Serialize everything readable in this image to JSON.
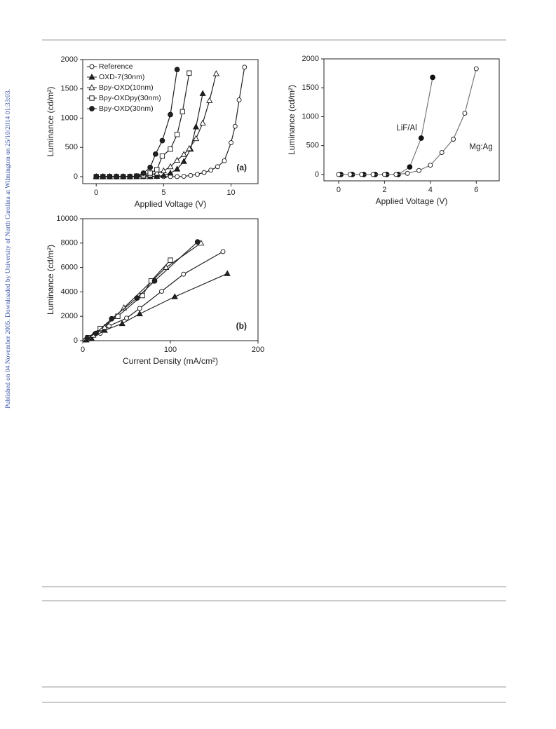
{
  "side_note": "Published on 04 November 2005. Downloaded by University of North Carolina at Wilmington on 25/10/2014 01:33:03.",
  "chart_data": [
    {
      "type": "line",
      "xlabel": "Applied Voltage (V)",
      "ylabel": "Luminance (cd/m²)",
      "annotations": [
        "(a)"
      ],
      "legend": "upper left",
      "xlim": [
        -1,
        12
      ],
      "xticks": [
        0,
        5,
        10
      ],
      "ylim": [
        -120,
        2000
      ],
      "yticks": [
        0,
        500,
        1000,
        1500,
        2000
      ],
      "series": [
        {
          "name": "Reference",
          "color": "#222222",
          "marker": "circle",
          "filled": false,
          "x": [
            0,
            0.5,
            1,
            1.5,
            2,
            2.5,
            3,
            3.5,
            4,
            4.5,
            5,
            5.5,
            6,
            6.5,
            7,
            7.5,
            8,
            8.5,
            9,
            9.5,
            10,
            10.3,
            10.6,
            11
          ],
          "values": [
            0,
            0,
            0,
            0,
            0,
            0,
            0,
            0,
            0,
            0,
            0,
            0,
            0,
            5,
            20,
            40,
            70,
            110,
            170,
            270,
            580,
            860,
            1310,
            1870
          ]
        },
        {
          "name": "OXD-7(30nm)",
          "color": "#222222",
          "marker": "triangle",
          "filled": true,
          "x": [
            0,
            0.5,
            1,
            1.5,
            2,
            2.5,
            3,
            3.5,
            4,
            4.5,
            5,
            5.5,
            6,
            6.5,
            7,
            7.4,
            7.9
          ],
          "values": [
            0,
            0,
            0,
            0,
            0,
            0,
            0,
            0,
            0,
            5,
            20,
            60,
            130,
            260,
            470,
            850,
            1420
          ]
        },
        {
          "name": "Bpy-OXD(10nm)",
          "color": "#222222",
          "marker": "triangle",
          "filled": false,
          "x": [
            0,
            0.5,
            1,
            1.5,
            2,
            2.5,
            3,
            3.5,
            4,
            4.5,
            5,
            5.5,
            6,
            6.5,
            6.9,
            7.4,
            7.9,
            8.4,
            8.9
          ],
          "values": [
            0,
            0,
            0,
            0,
            0,
            0,
            0,
            10,
            30,
            60,
            100,
            170,
            280,
            380,
            480,
            650,
            915,
            1300,
            1760
          ]
        },
        {
          "name": "Bpy-OXDpy(30nm)",
          "color": "#222222",
          "marker": "square",
          "filled": false,
          "x": [
            0,
            0.5,
            1,
            1.5,
            2,
            2.5,
            3,
            3.5,
            4,
            4.5,
            4.9,
            5.5,
            6,
            6.4,
            6.9
          ],
          "values": [
            0,
            0,
            0,
            0,
            0,
            0,
            10,
            30,
            60,
            120,
            350,
            470,
            720,
            1110,
            1770
          ]
        },
        {
          "name": "Bpy-OXD(30nm)",
          "color": "#222222",
          "marker": "circle",
          "filled": true,
          "x": [
            0,
            0.5,
            1,
            1.5,
            2,
            2.5,
            3,
            3.5,
            4,
            4.4,
            4.9,
            5.5,
            6
          ],
          "values": [
            0,
            0,
            0,
            0,
            0,
            0,
            10,
            60,
            157,
            385,
            615,
            1060,
            1830
          ]
        }
      ]
    },
    {
      "type": "line",
      "xlabel": "Current Density (mA/cm²)",
      "ylabel": "Luminance (cd/m²)",
      "annotations": [
        "(b)"
      ],
      "xlim": [
        0,
        200
      ],
      "xticks": [
        0,
        100,
        200
      ],
      "ylim": [
        0,
        10000
      ],
      "yticks": [
        0,
        2000,
        4000,
        6000,
        8000,
        10000
      ],
      "series": [
        {
          "name": "Reference",
          "color": "#222222",
          "marker": "circle",
          "filled": false,
          "x": [
            3,
            8,
            20,
            30,
            50,
            65,
            90,
            115,
            160
          ],
          "values": [
            50,
            200,
            600,
            1200,
            1850,
            2650,
            4050,
            5450,
            7300
          ]
        },
        {
          "name": "OXD-7(30nm)",
          "color": "#222222",
          "marker": "triangle",
          "filled": true,
          "x": [
            4,
            10,
            25,
            45,
            65,
            105,
            165
          ],
          "values": [
            60,
            200,
            850,
            1400,
            2200,
            3600,
            5500
          ]
        },
        {
          "name": "Bpy-OXD(10nm)",
          "color": "#222222",
          "marker": "triangle",
          "filled": false,
          "x": [
            5,
            12,
            25,
            47,
            95,
            135
          ],
          "values": [
            150,
            450,
            1100,
            2700,
            6000,
            8000
          ]
        },
        {
          "name": "Bpy-OXDpy(30nm)",
          "color": "#222222",
          "marker": "square",
          "filled": false,
          "x": [
            6,
            20,
            40,
            68,
            78,
            100
          ],
          "values": [
            250,
            1000,
            2000,
            3700,
            4900,
            6600
          ]
        },
        {
          "name": "Bpy-OXD(30nm)",
          "color": "#222222",
          "marker": "circle",
          "filled": true,
          "x": [
            5,
            15,
            33,
            62,
            82,
            131
          ],
          "values": [
            200,
            600,
            1800,
            3500,
            4900,
            8100
          ]
        }
      ]
    },
    {
      "type": "line",
      "xlabel": "Applied Voltage (V)",
      "ylabel": "Luminance (cd/m²)",
      "direct_labels": true,
      "xlim": [
        -0.64,
        7
      ],
      "xticks": [
        0,
        2,
        4,
        6
      ],
      "ylim": [
        -110,
        2000
      ],
      "yticks": [
        0,
        500,
        1000,
        1500,
        2000
      ],
      "series": [
        {
          "name": "LiF/Al",
          "color": "#777777",
          "marker": "circle",
          "filled": true,
          "x": [
            0.1,
            0.6,
            1.1,
            1.6,
            2.1,
            2.6,
            3.1,
            3.6,
            4.1
          ],
          "values": [
            0,
            0,
            0,
            0,
            0,
            0,
            130,
            630,
            1680
          ]
        },
        {
          "name": "Mg:Ag",
          "color": "#777777",
          "marker": "circle",
          "filled": false,
          "x": [
            0,
            0.5,
            1,
            1.5,
            2,
            2.5,
            3,
            3.5,
            4,
            4.5,
            5,
            5.5,
            6
          ],
          "values": [
            0,
            0,
            0,
            0,
            0,
            0,
            20,
            70,
            160,
            380,
            610,
            1060,
            1830
          ]
        }
      ]
    }
  ]
}
